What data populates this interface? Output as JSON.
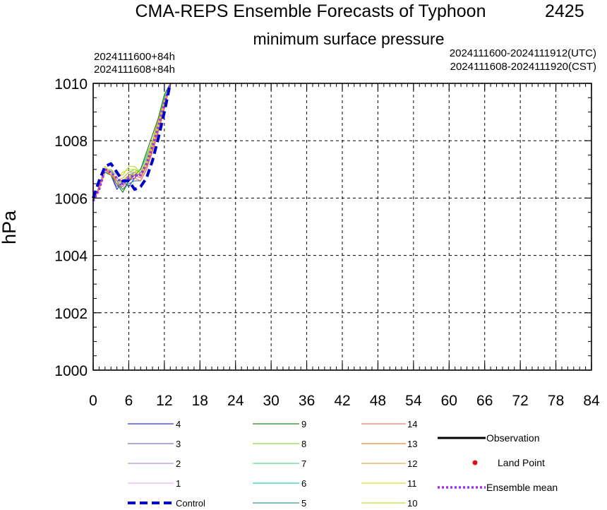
{
  "title": "CMA-REPS Ensemble Forecasts of Typhoon",
  "typhoon_id": "2425",
  "subtitle": "minimum surface pressure",
  "init_utc": "2024111600+84h",
  "init_cst": "2024111608+84h",
  "range_utc": "2024111600-2024111912(UTC)",
  "range_cst": "2024111608-2024111920(CST)",
  "legend": {
    "col1": [
      {
        "label": "4",
        "color": "#3333dd"
      },
      {
        "label": "3",
        "color": "#7777cc"
      },
      {
        "label": "2",
        "color": "#b090e0"
      },
      {
        "label": "1",
        "color": "#f0b0f0"
      },
      {
        "label": "Control",
        "color": "#0000cc"
      }
    ],
    "col2": [
      {
        "label": "9",
        "color": "#228822"
      },
      {
        "label": "8",
        "color": "#88dd33"
      },
      {
        "label": "7",
        "color": "#55dd88"
      },
      {
        "label": "6",
        "color": "#33cccc"
      },
      {
        "label": "5",
        "color": "#339999"
      }
    ],
    "col3": [
      {
        "label": "14",
        "color": "#ee7766"
      },
      {
        "label": "13",
        "color": "#ee8833"
      },
      {
        "label": "12",
        "color": "#eeaa55"
      },
      {
        "label": "11",
        "color": "#dddd22"
      },
      {
        "label": "10",
        "color": "#bbdd44"
      }
    ],
    "col4": [
      {
        "label": "Observation",
        "color": "#000000"
      },
      {
        "label": "Land Point",
        "color": "#dd1111"
      },
      {
        "label": "Ensemble mean",
        "color": "#9933ee"
      }
    ]
  },
  "chart_data": {
    "type": "line",
    "title": "CMA-REPS Ensemble Forecasts of Typhoon 2425",
    "subtitle": "minimum surface pressure",
    "xlabel": "",
    "ylabel": "hPa",
    "xlim": [
      0,
      84
    ],
    "ylim": [
      1000,
      1010
    ],
    "xticks": [
      0,
      6,
      12,
      18,
      24,
      30,
      36,
      42,
      48,
      54,
      60,
      66,
      72,
      78,
      84
    ],
    "yticks": [
      1000,
      1002,
      1004,
      1006,
      1008,
      1010
    ],
    "grid": true,
    "series": [
      {
        "name": "Control",
        "color": "#0000cc",
        "style": "dashed-thick",
        "points": [
          [
            0,
            1006.0
          ],
          [
            1,
            1006.6
          ],
          [
            2,
            1007.1
          ],
          [
            3,
            1007.2
          ],
          [
            4,
            1006.9
          ],
          [
            5,
            1006.6
          ],
          [
            6,
            1006.6
          ],
          [
            7,
            1006.3
          ],
          [
            8,
            1006.4
          ],
          [
            9,
            1006.7
          ],
          [
            10,
            1007.3
          ],
          [
            11,
            1008.1
          ],
          [
            12,
            1009.0
          ],
          [
            13,
            1010.0
          ]
        ]
      },
      {
        "name": "Ensemble mean",
        "color": "#9933ee",
        "style": "dotted-thick",
        "points": [
          [
            0,
            1005.9
          ],
          [
            1,
            1006.3
          ],
          [
            2,
            1007.0
          ],
          [
            3,
            1006.9
          ],
          [
            4,
            1006.7
          ],
          [
            5,
            1006.5
          ],
          [
            6,
            1006.7
          ],
          [
            7,
            1006.8
          ],
          [
            8,
            1006.8
          ],
          [
            9,
            1007.2
          ],
          [
            10,
            1007.8
          ],
          [
            11,
            1008.5
          ],
          [
            12,
            1009.3
          ],
          [
            13,
            1010.0
          ]
        ]
      },
      {
        "name": "1",
        "color": "#f0b0f0",
        "points": [
          [
            0,
            1005.9
          ],
          [
            1,
            1006.4
          ],
          [
            2,
            1007.0
          ],
          [
            3,
            1006.9
          ],
          [
            4,
            1006.6
          ],
          [
            5,
            1006.4
          ],
          [
            6,
            1006.7
          ],
          [
            7,
            1006.8
          ],
          [
            8,
            1006.7
          ],
          [
            9,
            1007.2
          ],
          [
            10,
            1007.8
          ],
          [
            11,
            1008.5
          ],
          [
            12,
            1009.3
          ],
          [
            13,
            1010.0
          ]
        ]
      },
      {
        "name": "2",
        "color": "#b090e0",
        "points": [
          [
            0,
            1005.9
          ],
          [
            1,
            1006.3
          ],
          [
            2,
            1007.1
          ],
          [
            3,
            1006.9
          ],
          [
            4,
            1006.5
          ],
          [
            5,
            1006.3
          ],
          [
            6,
            1006.6
          ],
          [
            7,
            1006.9
          ],
          [
            8,
            1006.8
          ],
          [
            9,
            1007.1
          ],
          [
            10,
            1007.7
          ],
          [
            11,
            1008.4
          ],
          [
            12,
            1009.2
          ],
          [
            13,
            1010.0
          ]
        ]
      },
      {
        "name": "3",
        "color": "#7777cc",
        "points": [
          [
            0,
            1005.9
          ],
          [
            1,
            1006.4
          ],
          [
            2,
            1006.9
          ],
          [
            3,
            1006.8
          ],
          [
            4,
            1006.4
          ],
          [
            5,
            1006.5
          ],
          [
            6,
            1006.6
          ],
          [
            7,
            1006.7
          ],
          [
            8,
            1006.9
          ],
          [
            9,
            1007.3
          ],
          [
            10,
            1007.9
          ],
          [
            11,
            1008.6
          ],
          [
            12,
            1009.4
          ],
          [
            13,
            1010.0
          ]
        ]
      },
      {
        "name": "4",
        "color": "#3333dd",
        "points": [
          [
            0,
            1005.9
          ],
          [
            1,
            1006.3
          ],
          [
            2,
            1007.0
          ],
          [
            3,
            1006.8
          ],
          [
            4,
            1006.3
          ],
          [
            5,
            1006.6
          ],
          [
            6,
            1006.4
          ],
          [
            7,
            1006.7
          ],
          [
            8,
            1006.9
          ],
          [
            9,
            1007.2
          ],
          [
            10,
            1007.8
          ],
          [
            11,
            1008.5
          ],
          [
            12,
            1009.2
          ],
          [
            13,
            1010.0
          ]
        ]
      },
      {
        "name": "5",
        "color": "#339999",
        "points": [
          [
            0,
            1005.9
          ],
          [
            1,
            1006.4
          ],
          [
            2,
            1007.0
          ],
          [
            3,
            1007.0
          ],
          [
            4,
            1006.6
          ],
          [
            5,
            1006.3
          ],
          [
            6,
            1006.5
          ],
          [
            7,
            1006.6
          ],
          [
            8,
            1006.6
          ],
          [
            9,
            1007.0
          ],
          [
            10,
            1007.7
          ],
          [
            11,
            1008.4
          ],
          [
            12,
            1009.3
          ],
          [
            13,
            1010.0
          ]
        ]
      },
      {
        "name": "6",
        "color": "#33cccc",
        "points": [
          [
            0,
            1005.9
          ],
          [
            1,
            1006.3
          ],
          [
            2,
            1006.9
          ],
          [
            3,
            1006.9
          ],
          [
            4,
            1006.7
          ],
          [
            5,
            1006.5
          ],
          [
            6,
            1006.8
          ],
          [
            7,
            1006.9
          ],
          [
            8,
            1007.0
          ],
          [
            9,
            1007.4
          ],
          [
            10,
            1008.0
          ],
          [
            11,
            1008.6
          ],
          [
            12,
            1009.5
          ],
          [
            13,
            1010.0
          ]
        ]
      },
      {
        "name": "7",
        "color": "#55dd88",
        "points": [
          [
            0,
            1005.9
          ],
          [
            1,
            1006.4
          ],
          [
            2,
            1007.1
          ],
          [
            3,
            1006.9
          ],
          [
            4,
            1006.6
          ],
          [
            5,
            1006.7
          ],
          [
            6,
            1006.9
          ],
          [
            7,
            1007.0
          ],
          [
            8,
            1006.9
          ],
          [
            9,
            1007.3
          ],
          [
            10,
            1007.9
          ],
          [
            11,
            1008.7
          ],
          [
            12,
            1009.5
          ],
          [
            13,
            1010.0
          ]
        ]
      },
      {
        "name": "8",
        "color": "#88dd33",
        "points": [
          [
            0,
            1005.9
          ],
          [
            1,
            1006.3
          ],
          [
            2,
            1007.0
          ],
          [
            3,
            1006.8
          ],
          [
            4,
            1006.5
          ],
          [
            5,
            1006.6
          ],
          [
            6,
            1006.7
          ],
          [
            7,
            1006.9
          ],
          [
            8,
            1007.0
          ],
          [
            9,
            1007.5
          ],
          [
            10,
            1008.0
          ],
          [
            11,
            1008.8
          ],
          [
            12,
            1009.6
          ],
          [
            13,
            1010.0
          ]
        ]
      },
      {
        "name": "9",
        "color": "#228822",
        "points": [
          [
            0,
            1005.9
          ],
          [
            1,
            1006.3
          ],
          [
            2,
            1006.9
          ],
          [
            3,
            1006.8
          ],
          [
            4,
            1006.5
          ],
          [
            5,
            1006.2
          ],
          [
            6,
            1006.6
          ],
          [
            7,
            1006.8
          ],
          [
            8,
            1007.0
          ],
          [
            9,
            1007.6
          ],
          [
            10,
            1008.2
          ],
          [
            11,
            1008.8
          ],
          [
            12,
            1009.6
          ],
          [
            13,
            1010.0
          ]
        ]
      },
      {
        "name": "10",
        "color": "#bbdd44",
        "points": [
          [
            0,
            1005.9
          ],
          [
            1,
            1006.4
          ],
          [
            2,
            1007.0
          ],
          [
            3,
            1007.0
          ],
          [
            4,
            1006.8
          ],
          [
            5,
            1006.8
          ],
          [
            6,
            1007.1
          ],
          [
            7,
            1007.1
          ],
          [
            8,
            1006.9
          ],
          [
            9,
            1007.3
          ],
          [
            10,
            1007.9
          ],
          [
            11,
            1008.6
          ],
          [
            12,
            1009.4
          ],
          [
            13,
            1010.0
          ]
        ]
      },
      {
        "name": "11",
        "color": "#dddd22",
        "points": [
          [
            0,
            1005.9
          ],
          [
            1,
            1006.3
          ],
          [
            2,
            1007.1
          ],
          [
            3,
            1006.9
          ],
          [
            4,
            1006.7
          ],
          [
            5,
            1006.9
          ],
          [
            6,
            1007.0
          ],
          [
            7,
            1007.0
          ],
          [
            8,
            1006.8
          ],
          [
            9,
            1007.2
          ],
          [
            10,
            1007.8
          ],
          [
            11,
            1008.5
          ],
          [
            12,
            1009.3
          ],
          [
            13,
            1010.0
          ]
        ]
      },
      {
        "name": "12",
        "color": "#eeaa55",
        "points": [
          [
            0,
            1005.9
          ],
          [
            1,
            1006.3
          ],
          [
            2,
            1006.9
          ],
          [
            3,
            1006.9
          ],
          [
            4,
            1006.6
          ],
          [
            5,
            1006.7
          ],
          [
            6,
            1006.9
          ],
          [
            7,
            1006.9
          ],
          [
            8,
            1006.8
          ],
          [
            9,
            1007.3
          ],
          [
            10,
            1008.0
          ],
          [
            11,
            1008.7
          ],
          [
            12,
            1009.4
          ],
          [
            13,
            1010.0
          ]
        ]
      },
      {
        "name": "13",
        "color": "#ee8833",
        "points": [
          [
            0,
            1005.9
          ],
          [
            1,
            1006.4
          ],
          [
            2,
            1007.0
          ],
          [
            3,
            1006.8
          ],
          [
            4,
            1006.6
          ],
          [
            5,
            1006.6
          ],
          [
            6,
            1006.8
          ],
          [
            7,
            1006.8
          ],
          [
            8,
            1006.7
          ],
          [
            9,
            1007.1
          ],
          [
            10,
            1007.7
          ],
          [
            11,
            1008.4
          ],
          [
            12,
            1009.2
          ],
          [
            13,
            1010.0
          ]
        ]
      },
      {
        "name": "14",
        "color": "#ee7766",
        "points": [
          [
            0,
            1005.9
          ],
          [
            1,
            1006.3
          ],
          [
            2,
            1007.0
          ],
          [
            3,
            1006.9
          ],
          [
            4,
            1006.5
          ],
          [
            5,
            1006.4
          ],
          [
            6,
            1006.7
          ],
          [
            7,
            1006.7
          ],
          [
            8,
            1006.6
          ],
          [
            9,
            1007.0
          ],
          [
            10,
            1007.6
          ],
          [
            11,
            1008.3
          ],
          [
            12,
            1009.1
          ],
          [
            13,
            1010.0
          ]
        ]
      }
    ]
  }
}
